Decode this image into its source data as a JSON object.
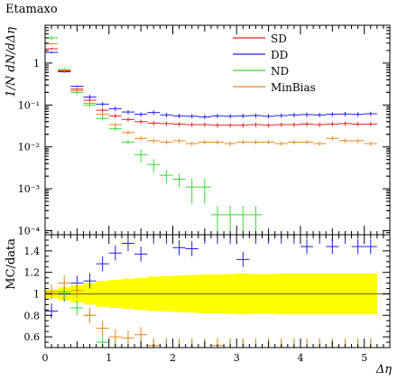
{
  "chart_data": {
    "type": "scatter",
    "title": "Etamaxo",
    "xlabel": "Δη",
    "ylabel": "1/N dN/dΔη",
    "ratio_ylabel": "MC/data",
    "xlim": [
      0,
      5.4
    ],
    "ylim": [
      8e-05,
      8
    ],
    "yscale": "log",
    "ratio_ylim": [
      0.5,
      1.55
    ],
    "legend_position": "top-right",
    "x_ticks": [
      "0",
      "1",
      "2",
      "3",
      "4",
      "5"
    ],
    "y_ticks": [
      "10^-4",
      "10^-3",
      "10^-2",
      "10^-1",
      "1"
    ],
    "ratio_ticks": [
      "0.6",
      "0.8",
      "1",
      "1.2",
      "1.4"
    ],
    "x_centers": [
      0.1,
      0.3,
      0.5,
      0.7,
      0.9,
      1.1,
      1.3,
      1.5,
      1.7,
      1.9,
      2.1,
      2.3,
      2.5,
      2.7,
      2.9,
      3.1,
      3.3,
      3.5,
      3.7,
      3.9,
      4.1,
      4.3,
      4.5,
      4.7,
      4.9,
      5.1
    ],
    "series": [
      {
        "name": "SD",
        "color": "#e8201f",
        "values": [
          2.2,
          0.65,
          0.24,
          0.13,
          0.075,
          0.055,
          0.045,
          0.04,
          0.037,
          0.036,
          0.035,
          0.034,
          0.034,
          0.033,
          0.033,
          0.033,
          0.034,
          0.033,
          0.034,
          0.034,
          0.035,
          0.034,
          0.035,
          0.036,
          0.035,
          0.035
        ]
      },
      {
        "name": "DD",
        "color": "#1f1fe6",
        "values": [
          1.8,
          0.62,
          0.28,
          0.155,
          0.105,
          0.082,
          0.068,
          0.06,
          0.066,
          0.058,
          0.055,
          0.054,
          0.052,
          0.055,
          0.054,
          0.055,
          0.056,
          0.054,
          0.056,
          0.058,
          0.059,
          0.058,
          0.06,
          0.061,
          0.06,
          0.062
        ]
      },
      {
        "name": "ND",
        "color": "#33dd33",
        "values": [
          4.0,
          0.7,
          0.2,
          0.1,
          0.048,
          0.027,
          0.013,
          0.0065,
          0.0038,
          0.0021,
          0.0017,
          0.0011,
          0.0011,
          0.00024,
          0.00024,
          0.00024,
          0.00024,
          null,
          null,
          null,
          null,
          null,
          null,
          null,
          null,
          null
        ]
      },
      {
        "name": "MinBias",
        "color": "#e8861f",
        "values": [
          2.9,
          0.68,
          0.22,
          0.11,
          0.06,
          0.034,
          0.022,
          0.016,
          0.014,
          0.013,
          0.014,
          0.012,
          0.013,
          0.013,
          0.012,
          0.013,
          0.013,
          0.013,
          0.012,
          0.013,
          0.013,
          0.012,
          0.016,
          0.014,
          0.014,
          0.012
        ]
      }
    ],
    "ratio_series": [
      {
        "name": "DD",
        "values": [
          0.84,
          1.0,
          1.1,
          1.12,
          1.28,
          1.38,
          1.47,
          1.37,
          1.56,
          1.56,
          1.43,
          1.42,
          1.56,
          1.56,
          1.56,
          1.32,
          1.56,
          1.56,
          1.56,
          1.56,
          1.44,
          1.56,
          1.44,
          1.56,
          1.44,
          1.44
        ]
      },
      {
        "name": "ND",
        "values": [
          null,
          1.02,
          0.87,
          0.8,
          0.55,
          0.45,
          0.45,
          0.45,
          0.45,
          0.45,
          0.45,
          0.45,
          0.45,
          0.45,
          0.45,
          0.45,
          0.45,
          0.45,
          0.45,
          0.45,
          0.45,
          0.45,
          0.45,
          0.45,
          0.45,
          0.45
        ]
      },
      {
        "name": "MinBias",
        "values": [
          1.02,
          1.1,
          1.03,
          0.8,
          0.68,
          0.6,
          0.59,
          0.62,
          0.52,
          0.45,
          0.45,
          0.45,
          0.45,
          0.52,
          0.45,
          0.45,
          0.45,
          0.45,
          0.45,
          0.45,
          0.45,
          0.45,
          0.45,
          0.45,
          0.45,
          0.45
        ]
      }
    ],
    "uncertainty_band": {
      "color": "#ffff00",
      "values": [
        0.04,
        0.06,
        0.08,
        0.1,
        0.12,
        0.13,
        0.14,
        0.15,
        0.16,
        0.165,
        0.17,
        0.175,
        0.18,
        0.18,
        0.185,
        0.19,
        0.185,
        0.185,
        0.19,
        0.19,
        0.19,
        0.19,
        0.19,
        0.19,
        0.19,
        0.19
      ]
    }
  }
}
